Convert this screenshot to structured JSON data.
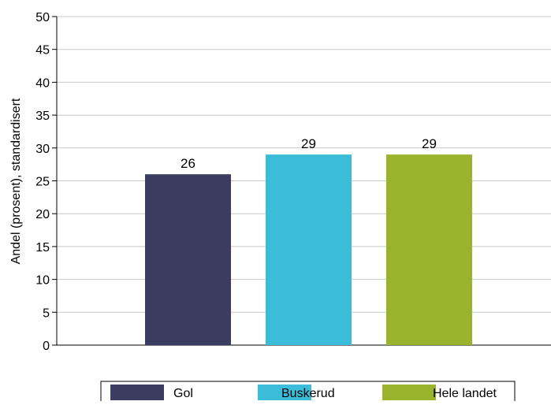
{
  "chart_data": {
    "type": "bar",
    "categories": [
      "Gol",
      "Buskerud",
      "Hele landet"
    ],
    "values": [
      26,
      29,
      29
    ],
    "data_labels": [
      "26",
      "29",
      "29"
    ],
    "colors": [
      "#3a3d5f",
      "#3bbcd9",
      "#99b32c"
    ],
    "title": "",
    "xlabel": "",
    "ylabel": "Andel (prosent), standardisert",
    "ylim": [
      0,
      50
    ],
    "yticks": [
      0,
      5,
      10,
      15,
      20,
      25,
      30,
      35,
      40,
      45,
      50
    ],
    "grid": true,
    "legend": {
      "position": "bottom",
      "entries": [
        "Gol",
        "Buskerud",
        "Hele landet"
      ]
    }
  }
}
